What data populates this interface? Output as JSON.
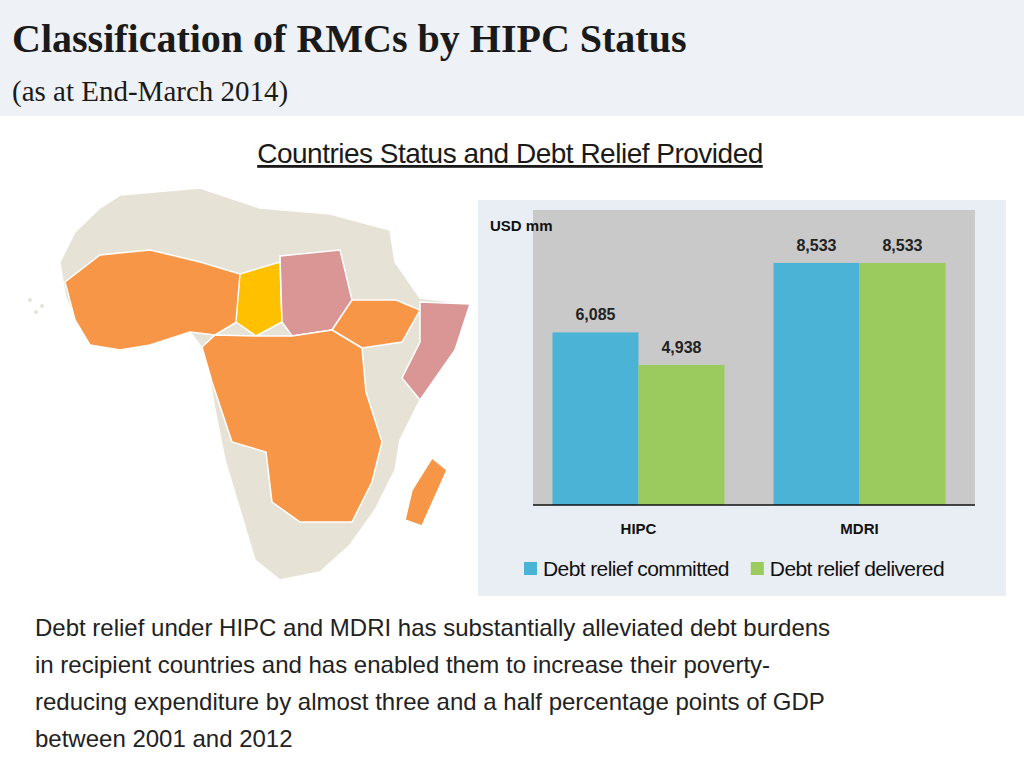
{
  "header": {
    "title": "Classification of RMCs by HIPC Status",
    "subtitle": "(as at End-March 2014)"
  },
  "chart_data": {
    "type": "bar",
    "title": "Countries Status and Debt Relief Provided",
    "y_label": "USD mm",
    "categories": [
      "HIPC",
      "MDRI"
    ],
    "series": [
      {
        "name": "Debt relief committed",
        "color": "#4bb4d6",
        "values": [
          6085,
          8533
        ],
        "value_labels": [
          "6,085",
          "8,533"
        ]
      },
      {
        "name": "Debt relief delivered",
        "color": "#9bcb5f",
        "values": [
          4938,
          8533
        ],
        "value_labels": [
          "4,938",
          "8,533"
        ]
      }
    ],
    "ylim": [
      0,
      10400
    ],
    "data_labels": true,
    "tick_labels": "x",
    "legend": "bottom"
  },
  "caption": [
    "Debt relief under HIPC and MDRI has substantially alleviated debt burdens",
    "in recipient countries and has enabled them to increase their poverty-",
    "reducing expenditure by almost three and a half percentage points of GDP",
    "between 2001 and 2012"
  ]
}
